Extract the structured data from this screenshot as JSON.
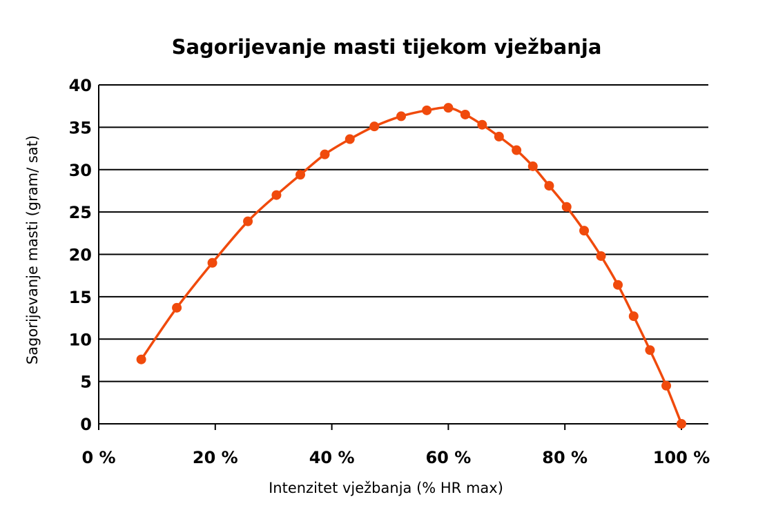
{
  "chart_data": {
    "type": "line",
    "title": "Sagorijevanje masti tijekom vježbanja",
    "xlabel": "Intenzitet vježbanja (% HR max)",
    "ylabel": "Sagorijevanje masti (gram/ sat)",
    "xlim": [
      0,
      100
    ],
    "ylim": [
      0,
      40
    ],
    "x_tick_labels": [
      "0 %",
      "20 %",
      "40 %",
      "60 %",
      "80 %",
      "100 %"
    ],
    "x_tick_values": [
      0,
      20,
      40,
      60,
      80,
      100
    ],
    "y_tick_labels": [
      "0",
      "5",
      "10",
      "15",
      "20",
      "25",
      "30",
      "35",
      "40"
    ],
    "y_tick_values": [
      0,
      5,
      10,
      15,
      20,
      25,
      30,
      35,
      40
    ],
    "grid": true,
    "colors": {
      "series": "#f04a0c",
      "grid": "#000000"
    },
    "series": [
      {
        "x": [
          7.3,
          13.4,
          19.5,
          25.6,
          30.5,
          34.6,
          38.8,
          43.1,
          47.3,
          51.9,
          56.3,
          60.0,
          62.9,
          65.8,
          68.7,
          71.7,
          74.5,
          77.3,
          80.3,
          83.3,
          86.2,
          89.1,
          91.8,
          94.6,
          97.4,
          100.0
        ],
        "y": [
          7.6,
          13.7,
          19.0,
          23.9,
          27.0,
          29.4,
          31.8,
          33.6,
          35.1,
          36.3,
          37.0,
          37.3,
          36.5,
          35.3,
          33.9,
          32.3,
          30.4,
          28.1,
          25.6,
          22.8,
          19.8,
          16.4,
          12.7,
          8.7,
          4.5,
          0.0
        ]
      }
    ]
  }
}
